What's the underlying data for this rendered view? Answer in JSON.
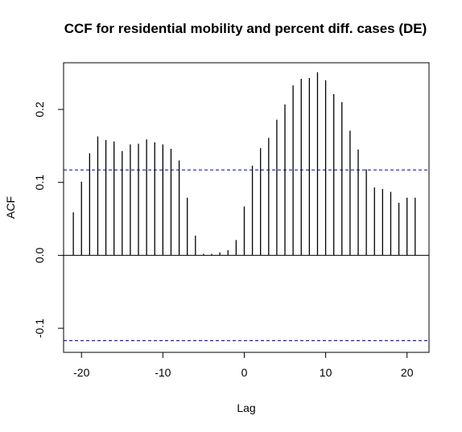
{
  "chart_data": {
    "type": "bar",
    "title": "CCF for residential mobility and percent diff. cases (DE)",
    "xlabel": "Lag",
    "ylabel": "ACF",
    "xlim": [
      -22.2,
      22.7
    ],
    "ylim": [
      -0.133,
      0.264
    ],
    "x_ticks": [
      -20,
      -10,
      0,
      10,
      20
    ],
    "x_tick_labels": [
      "-20",
      "-10",
      "0",
      "10",
      "20"
    ],
    "y_ticks": [
      -0.1,
      0.0,
      0.1,
      0.2
    ],
    "y_tick_labels": [
      "-0.1",
      "0.0",
      "0.1",
      "0.2"
    ],
    "lags": [
      -21,
      -20,
      -19,
      -18,
      -17,
      -16,
      -15,
      -14,
      -13,
      -12,
      -11,
      -10,
      -9,
      -8,
      -7,
      -6,
      -5,
      -4,
      -3,
      -2,
      -1,
      0,
      1,
      2,
      3,
      4,
      5,
      6,
      7,
      8,
      9,
      10,
      11,
      12,
      13,
      14,
      15,
      16,
      17,
      18,
      19,
      20,
      21
    ],
    "values": [
      0.059,
      0.101,
      0.14,
      0.163,
      0.158,
      0.156,
      0.143,
      0.152,
      0.153,
      0.159,
      0.155,
      0.152,
      0.146,
      0.13,
      0.079,
      0.027,
      0.002,
      0.002,
      0.004,
      0.007,
      0.021,
      0.067,
      0.123,
      0.147,
      0.161,
      0.186,
      0.207,
      0.233,
      0.242,
      0.243,
      0.251,
      0.24,
      0.221,
      0.21,
      0.171,
      0.145,
      0.118,
      0.093,
      0.091,
      0.087,
      0.072,
      0.079,
      0.079
    ],
    "confidence_limits": [
      0.117,
      -0.117
    ],
    "confidence_line_color": "#0000cc",
    "grid": false,
    "legend": "none"
  }
}
